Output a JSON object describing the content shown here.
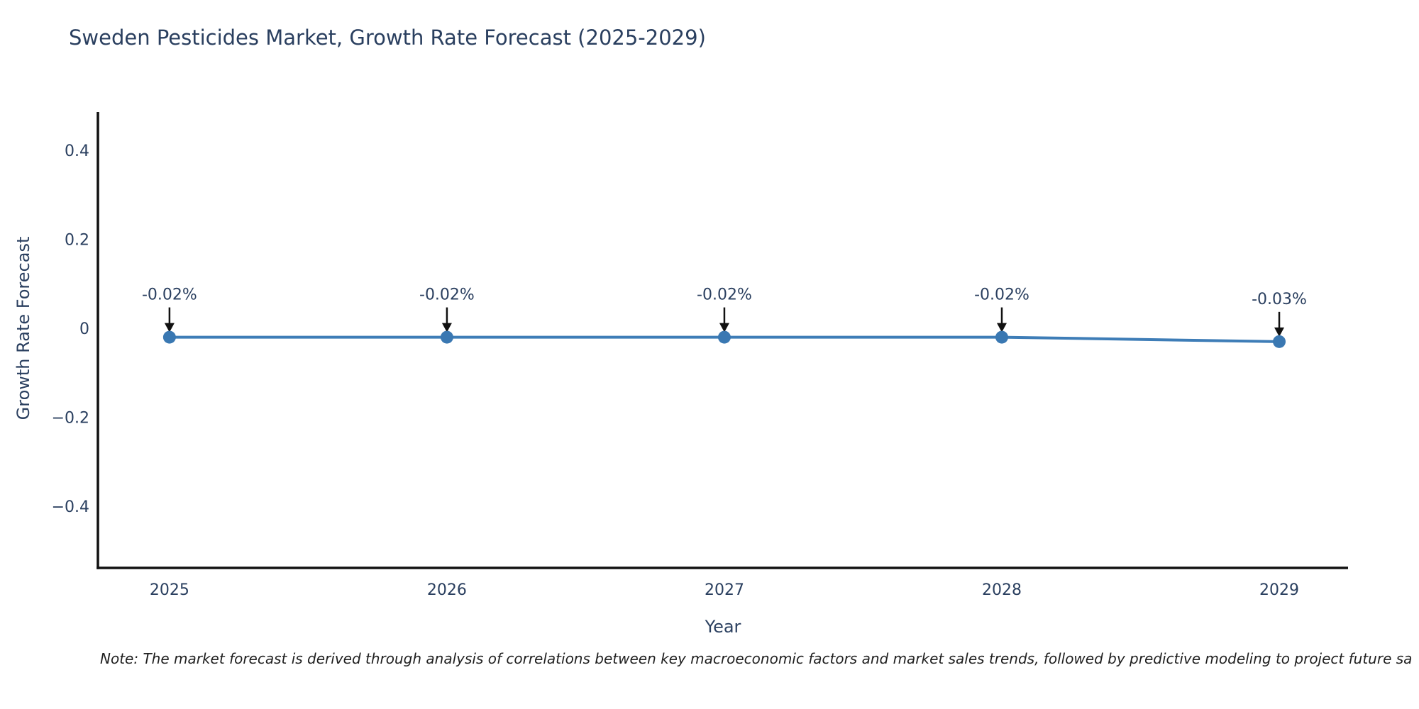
{
  "header": {
    "title": "Sweden Pesticides Market, Growth Rate Forecast (2025-2029)"
  },
  "chart_data": {
    "type": "line",
    "title": "Sweden Pesticides Market, Growth Rate Forecast (2025-2029)",
    "xlabel": "Year",
    "ylabel": "Growth Rate Forecast",
    "x": [
      2025,
      2026,
      2027,
      2028,
      2029
    ],
    "x_tick_labels": [
      "2025",
      "2026",
      "2027",
      "2028",
      "2029"
    ],
    "series": [
      {
        "name": "Growth Rate Forecast",
        "values": [
          -0.02,
          -0.02,
          -0.02,
          -0.02,
          -0.03
        ]
      }
    ],
    "point_labels": [
      "-0.02%",
      "-0.02%",
      "-0.02%",
      "-0.02%",
      "-0.03%"
    ],
    "y_ticks": [
      0.4,
      0.2,
      0,
      -0.2,
      -0.4
    ],
    "y_tick_labels": [
      "0.4",
      "0.2",
      "0",
      "−0.2",
      "−0.4"
    ],
    "xlim": [
      2024.742,
      2029.248
    ],
    "ylim": [
      -0.5386,
      0.4861
    ],
    "grid": false,
    "legend": "none",
    "colors": {
      "line": "#3e7db7",
      "marker": "#3a78b2",
      "axis": "#111111",
      "arrow": "#111111",
      "text": "#2a3f5f",
      "background": "#ffffff"
    }
  },
  "footer": {
    "note": "Note: The market forecast is derived through analysis of correlations between key macroeconomic factors and market sales trends, followed by predictive modeling to project future sa"
  }
}
